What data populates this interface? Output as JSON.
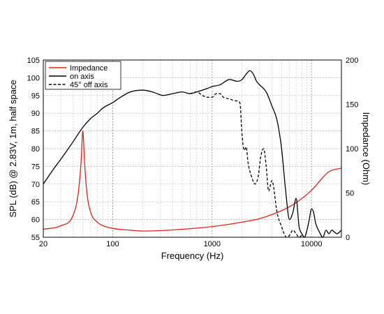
{
  "chart_data": {
    "type": "line",
    "title": "",
    "xlabel": "Frequency (Hz)",
    "ylabel": "SPL (dB) @ 2.83V, 1m, half space",
    "y2label": "Impedance (Ohm)",
    "xscale": "log",
    "xlim": [
      20,
      20000
    ],
    "ylim": [
      55,
      105
    ],
    "y2lim": [
      0,
      200
    ],
    "x_tick_labels": [
      "20",
      "100",
      "1000",
      "10000"
    ],
    "x_tick_values": [
      20,
      100,
      1000,
      10000
    ],
    "y_ticks": [
      55,
      60,
      65,
      70,
      75,
      80,
      85,
      90,
      95,
      100,
      105
    ],
    "y2_ticks": [
      0,
      50,
      100,
      150,
      200
    ],
    "grid": true,
    "legend_position": "top-left",
    "series": [
      {
        "name": "Impedance",
        "axis": "right",
        "color": "#e2231a",
        "style": "solid",
        "x": [
          20,
          30,
          40,
          45,
          48,
          50,
          52,
          55,
          60,
          70,
          80,
          100,
          150,
          200,
          300,
          500,
          1000,
          2000,
          3000,
          5000,
          7000,
          10000,
          15000,
          20000
        ],
        "y": [
          9,
          13,
          25,
          50,
          85,
          120,
          85,
          50,
          28,
          17,
          13,
          10,
          8,
          7,
          7.5,
          9,
          12,
          17,
          21,
          30,
          39,
          53,
          74,
          78
        ]
      },
      {
        "name": "on axis",
        "axis": "left",
        "color": "#000000",
        "style": "solid",
        "x": [
          20,
          25,
          30,
          40,
          50,
          60,
          70,
          80,
          100,
          120,
          150,
          200,
          250,
          280,
          320,
          400,
          500,
          600,
          700,
          800,
          900,
          1000,
          1200,
          1500,
          1800,
          2000,
          2200,
          2400,
          2600,
          2800,
          3000,
          3500,
          4000,
          4500,
          5000,
          5500,
          6000,
          6500,
          7000,
          7500,
          8000,
          8500,
          9000,
          9500,
          10000,
          10500,
          11000,
          12000,
          13000,
          14000,
          15000,
          16000,
          18000,
          20000
        ],
        "y": [
          70,
          74,
          77,
          82,
          86,
          88.5,
          90,
          91.5,
          93,
          94.5,
          96,
          96.5,
          96,
          95.5,
          95,
          95.5,
          96,
          95.5,
          96,
          96.5,
          97,
          97.5,
          98,
          99.5,
          99,
          99.5,
          101,
          102,
          101,
          99,
          98,
          96,
          92,
          88,
          80,
          68,
          60,
          62,
          66,
          58,
          56,
          55,
          57,
          60,
          63,
          62,
          59,
          56.5,
          55,
          57,
          56,
          57,
          56,
          57
        ]
      },
      {
        "name": "45° off axis",
        "axis": "left",
        "color": "#000000",
        "style": "dashed",
        "x": [
          600,
          700,
          800,
          900,
          1000,
          1100,
          1200,
          1300,
          1500,
          1700,
          1900,
          2000,
          2100,
          2200,
          2300,
          2500,
          2700,
          2900,
          3100,
          3300,
          3500,
          3700,
          4000,
          4500,
          4700,
          5000,
          5300,
          5600,
          6000,
          6500,
          7000,
          7500,
          8000,
          8500
        ],
        "y": [
          95.5,
          96,
          95,
          94.5,
          94.5,
          95.5,
          95.5,
          94.5,
          94,
          93.5,
          93,
          84,
          79.5,
          80.5,
          76,
          72,
          70,
          72,
          78,
          80,
          75,
          68,
          71,
          62,
          60,
          58,
          56,
          55,
          55.5,
          57,
          56,
          55,
          55.5,
          55
        ]
      }
    ]
  }
}
